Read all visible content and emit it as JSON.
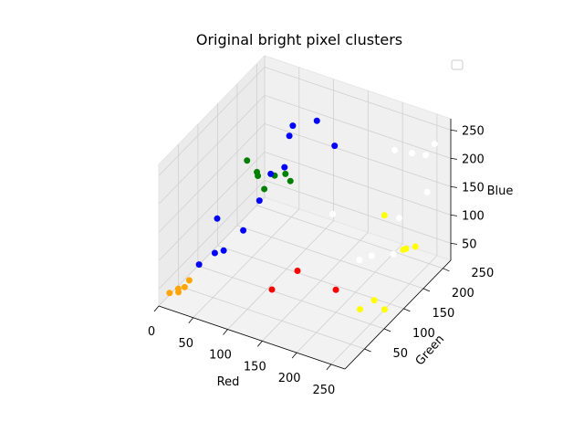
{
  "chart_data": {
    "type": "scatter",
    "projection": "3d",
    "title": "Original bright pixel clusters",
    "xlabel": "Red",
    "ylabel": "Green",
    "zlabel": "Blue",
    "xlim": [
      0,
      270
    ],
    "ylim": [
      0,
      270
    ],
    "zlim": [
      20,
      270
    ],
    "x_ticks": [
      0,
      50,
      100,
      150,
      200,
      250
    ],
    "y_ticks": [
      50,
      100,
      150,
      200,
      250
    ],
    "z_ticks": [
      50,
      100,
      150,
      200,
      250
    ],
    "grid": true,
    "legend": {
      "position": "top-right",
      "entries": []
    },
    "series": [
      {
        "color": "#ffa500",
        "points": [
          [
            10,
            10,
            40
          ],
          [
            18,
            18,
            45
          ],
          [
            20,
            15,
            42
          ],
          [
            25,
            22,
            48
          ],
          [
            30,
            25,
            60
          ]
        ]
      },
      {
        "color": "#0000ff",
        "points": [
          [
            30,
            50,
            70
          ],
          [
            50,
            55,
            95
          ],
          [
            60,
            60,
            100
          ],
          [
            60,
            110,
            100
          ],
          [
            25,
            105,
            110
          ],
          [
            60,
            180,
            150
          ],
          [
            80,
            180,
            170
          ],
          [
            70,
            210,
            200
          ],
          [
            75,
            210,
            220
          ],
          [
            130,
            220,
            200
          ],
          [
            90,
            245,
            210
          ],
          [
            55,
            160,
            115
          ]
        ]
      },
      {
        "color": "#008000",
        "points": [
          [
            20,
            190,
            150
          ],
          [
            40,
            180,
            145
          ],
          [
            30,
            200,
            120
          ],
          [
            45,
            190,
            110
          ],
          [
            60,
            190,
            140
          ],
          [
            70,
            200,
            140
          ],
          [
            80,
            195,
            135
          ]
        ]
      },
      {
        "color": "#ff0000",
        "points": [
          [
            130,
            60,
            60
          ],
          [
            150,
            90,
            80
          ],
          [
            200,
            100,
            60
          ]
        ]
      },
      {
        "color": "#ffff00",
        "points": [
          [
            235,
            100,
            40
          ],
          [
            250,
            110,
            55
          ],
          [
            265,
            110,
            45
          ],
          [
            225,
            180,
            145
          ],
          [
            255,
            175,
            100
          ],
          [
            245,
            200,
            80
          ],
          [
            250,
            215,
            75
          ]
        ]
      },
      {
        "color": "#ffffff",
        "points": [
          [
            110,
            250,
            50
          ],
          [
            200,
            160,
            70
          ],
          [
            215,
            165,
            80
          ],
          [
            255,
            150,
            110
          ],
          [
            235,
            200,
            130
          ],
          [
            200,
            250,
            200
          ],
          [
            225,
            250,
            205
          ],
          [
            245,
            250,
            210
          ],
          [
            255,
            255,
            230
          ],
          [
            250,
            245,
            150
          ]
        ]
      }
    ]
  }
}
